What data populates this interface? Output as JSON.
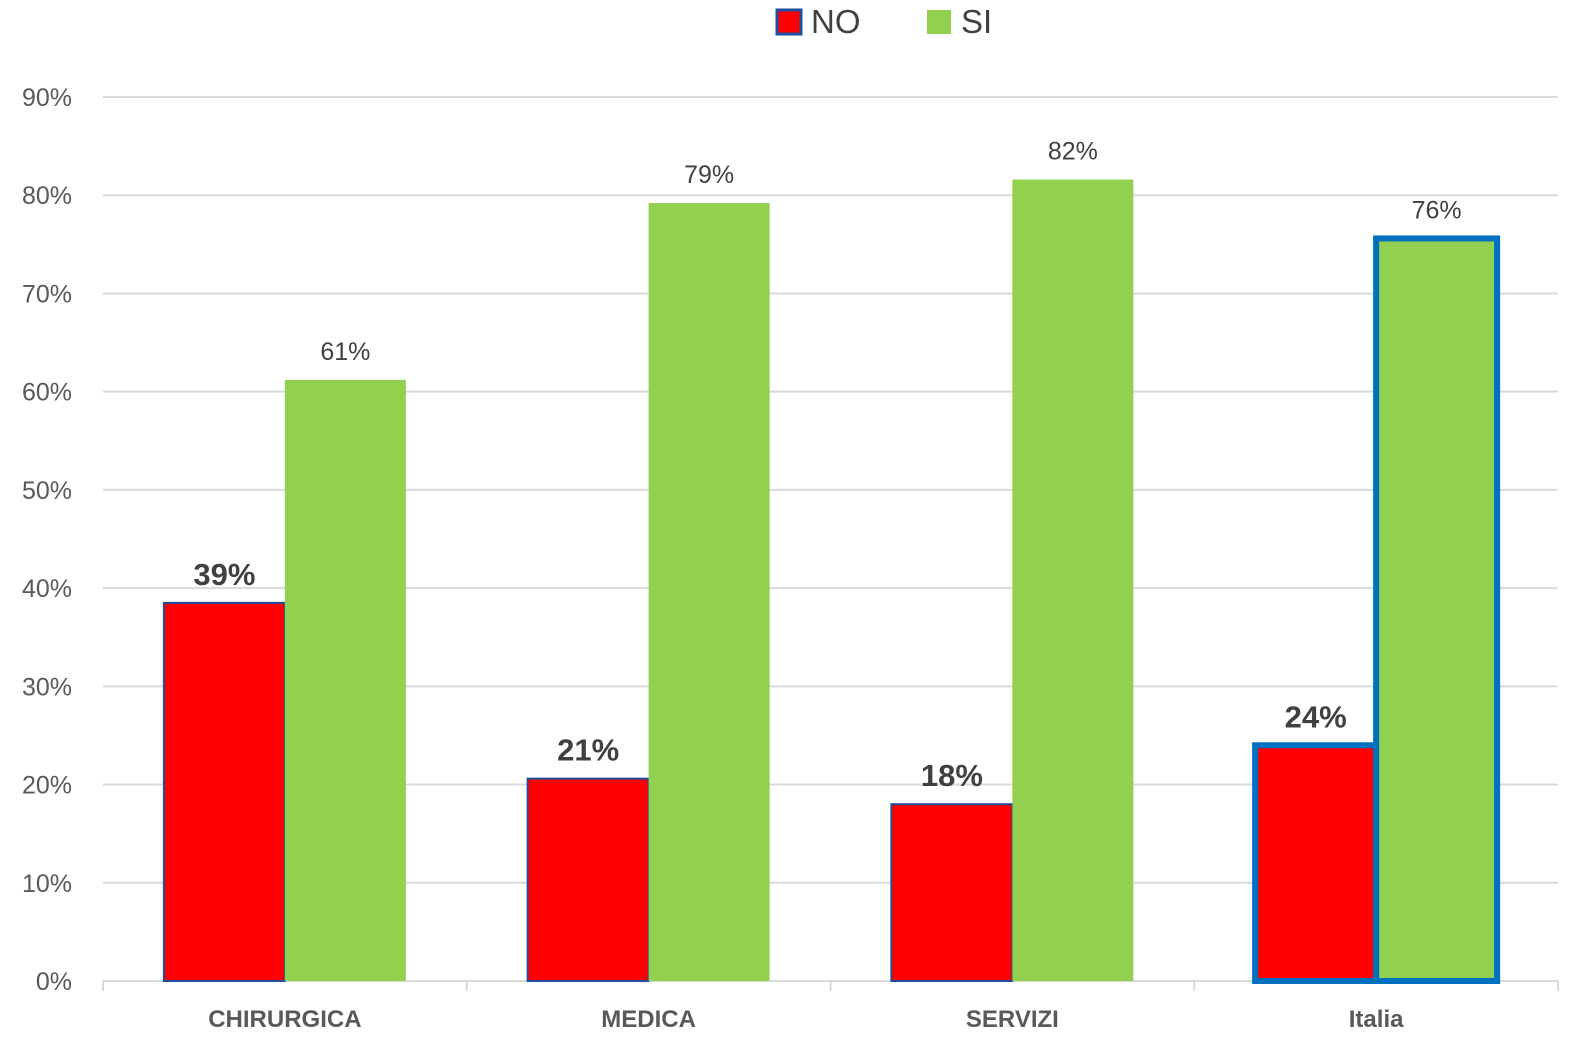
{
  "chart_data": {
    "type": "bar",
    "title": "",
    "xlabel": "",
    "ylabel": "",
    "categories": [
      "CHIRURGICA",
      "MEDICA",
      "SERVIZI",
      "Italia"
    ],
    "series": [
      {
        "name": "NO",
        "color": "#ff0000",
        "values": [
          38.5,
          20.6,
          18.0,
          24.0
        ],
        "labels": [
          "39%",
          "21%",
          "18%",
          "24%"
        ]
      },
      {
        "name": "SI",
        "color": "#92d050",
        "values": [
          61.2,
          79.2,
          81.6,
          75.6
        ],
        "labels": [
          "61%",
          "79%",
          "82%",
          "76%"
        ]
      }
    ],
    "ylim": [
      0,
      90
    ],
    "y_ticks": [
      0,
      10,
      20,
      30,
      40,
      50,
      60,
      70,
      80,
      90
    ],
    "y_tick_labels": [
      "0%",
      "10%",
      "20%",
      "30%",
      "40%",
      "50%",
      "60%",
      "70%",
      "80%",
      "90%"
    ],
    "highlight_category": "Italia",
    "highlight_color": "#0070c0",
    "bar_outline_color": "#1f4e9e",
    "grid": true,
    "grid_color": "#d9d9d9",
    "legend_position": "top-center"
  }
}
